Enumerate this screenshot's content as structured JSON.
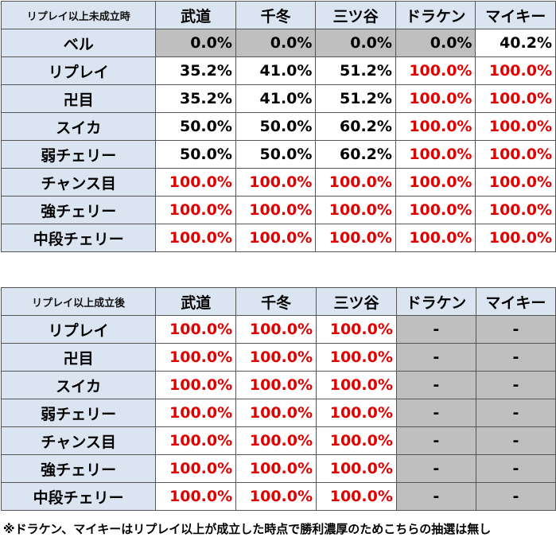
{
  "table1": {
    "corner": "リプレイ以上未成立時",
    "columns": [
      "武道",
      "千冬",
      "三ツ谷",
      "ドラケン",
      "マイキー"
    ],
    "rows": [
      {
        "label": "ベル",
        "values": [
          "0.0%",
          "0.0%",
          "0.0%",
          "0.0%",
          "40.2%"
        ]
      },
      {
        "label": "リプレイ",
        "values": [
          "35.2%",
          "41.0%",
          "51.2%",
          "100.0%",
          "100.0%"
        ]
      },
      {
        "label": "卍目",
        "values": [
          "35.2%",
          "41.0%",
          "51.2%",
          "100.0%",
          "100.0%"
        ]
      },
      {
        "label": "スイカ",
        "values": [
          "50.0%",
          "50.0%",
          "60.2%",
          "100.0%",
          "100.0%"
        ]
      },
      {
        "label": "弱チェリー",
        "values": [
          "50.0%",
          "50.0%",
          "60.2%",
          "100.0%",
          "100.0%"
        ]
      },
      {
        "label": "チャンス目",
        "values": [
          "100.0%",
          "100.0%",
          "100.0%",
          "100.0%",
          "100.0%"
        ]
      },
      {
        "label": "強チェリー",
        "values": [
          "100.0%",
          "100.0%",
          "100.0%",
          "100.0%",
          "100.0%"
        ]
      },
      {
        "label": "中段チェリー",
        "values": [
          "100.0%",
          "100.0%",
          "100.0%",
          "100.0%",
          "100.0%"
        ]
      }
    ]
  },
  "table2": {
    "corner": "リプレイ以上成立後",
    "columns": [
      "武道",
      "千冬",
      "三ツ谷",
      "ドラケン",
      "マイキー"
    ],
    "rows": [
      {
        "label": "リプレイ",
        "values": [
          "100.0%",
          "100.0%",
          "100.0%",
          "-",
          "-"
        ]
      },
      {
        "label": "卍目",
        "values": [
          "100.0%",
          "100.0%",
          "100.0%",
          "-",
          "-"
        ]
      },
      {
        "label": "スイカ",
        "values": [
          "100.0%",
          "100.0%",
          "100.0%",
          "-",
          "-"
        ]
      },
      {
        "label": "弱チェリー",
        "values": [
          "100.0%",
          "100.0%",
          "100.0%",
          "-",
          "-"
        ]
      },
      {
        "label": "チャンス目",
        "values": [
          "100.0%",
          "100.0%",
          "100.0%",
          "-",
          "-"
        ]
      },
      {
        "label": "強チェリー",
        "values": [
          "100.0%",
          "100.0%",
          "100.0%",
          "-",
          "-"
        ]
      },
      {
        "label": "中段チェリー",
        "values": [
          "100.0%",
          "100.0%",
          "100.0%",
          "-",
          "-"
        ]
      }
    ]
  },
  "note": "※ドラケン、マイキーはリプレイ以上が成立した時点で勝利濃厚のためこちらの抽選は無し",
  "colors": {
    "header_bg": "#dbe5f1",
    "gray_cell": "#bfbfbf",
    "highlight_text": "#e00000",
    "normal_text": "#000000"
  }
}
